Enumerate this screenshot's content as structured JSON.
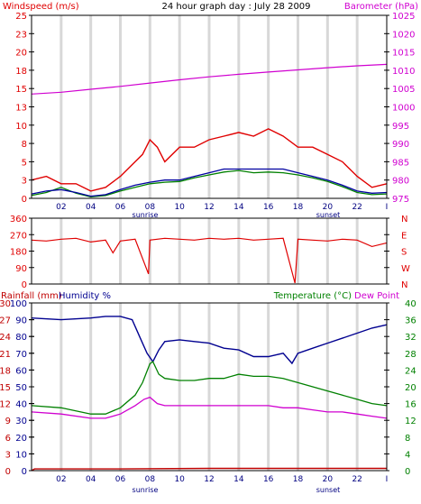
{
  "colors": {
    "wind": "#e00000",
    "wind_avg": "#0000a0",
    "wind_green": "#008000",
    "barometer": "#d000d0",
    "direction": "#e00000",
    "rainfall": "#c00000",
    "humidity": "#000090",
    "temperature": "#008000",
    "dewpoint": "#d000d0",
    "grid": "#d8d8d8",
    "frame": "#000000",
    "tick_text": "#000080"
  },
  "x_axis": {
    "tick_labels": [
      "02",
      "04",
      "06",
      "08",
      "10",
      "12",
      "14",
      "16",
      "18",
      "20",
      "22",
      "I"
    ],
    "sunrise_label": "sunrise",
    "sunset_label": "sunset",
    "sunrise_hour": 7.5,
    "sunset_hour": 19.8
  },
  "chart_data": [
    {
      "type": "line",
      "title": "24 hour graph day : July 28 2009",
      "left_axis_label": "Windspeed (m/s)",
      "right_axis_label": "Barometer (hPa)",
      "left_ticks": [
        "0",
        "3",
        "5",
        "8",
        "10",
        "13",
        "15",
        "18",
        "20",
        "23",
        "25"
      ],
      "right_ticks": [
        "975",
        "980",
        "985",
        "990",
        "995",
        "1000",
        "1005",
        "1010",
        "1015",
        "1020",
        "1025"
      ],
      "xlim": [
        0,
        24
      ],
      "ylim_left": [
        0,
        25
      ],
      "ylim_right": [
        975,
        1025
      ],
      "grid": true,
      "series": [
        {
          "key": "wind_gust",
          "axis": "left",
          "x": [
            0,
            1,
            2,
            3,
            4,
            5,
            6,
            6.5,
            7,
            7.5,
            8,
            8.5,
            9,
            10,
            11,
            12,
            13,
            14,
            15,
            16,
            17,
            18,
            19,
            20,
            21,
            22,
            23,
            24
          ],
          "values": [
            2.5,
            3,
            2,
            2,
            1,
            1.5,
            3,
            4,
            5,
            6,
            8,
            7,
            5,
            7,
            7,
            8,
            8.5,
            9,
            8.5,
            9.5,
            8.5,
            7,
            7,
            6,
            5,
            3,
            1.5,
            2
          ]
        },
        {
          "key": "wind_avg",
          "axis": "left",
          "x": [
            0,
            1,
            2,
            3,
            4,
            5,
            6,
            7,
            8,
            9,
            10,
            11,
            12,
            13,
            14,
            15,
            16,
            17,
            18,
            19,
            20,
            21,
            22,
            23,
            24
          ],
          "values": [
            0.6,
            1,
            1.2,
            0.8,
            0.3,
            0.5,
            1.2,
            1.8,
            2.2,
            2.5,
            2.5,
            3,
            3.5,
            4,
            4,
            4,
            4,
            4,
            3.5,
            3,
            2.5,
            1.8,
            1,
            0.7,
            0.8
          ]
        },
        {
          "key": "wind_green",
          "axis": "left",
          "x": [
            0,
            1,
            2,
            3,
            4,
            5,
            6,
            7,
            8,
            9,
            10,
            11,
            12,
            13,
            14,
            15,
            16,
            17,
            18,
            19,
            20,
            21,
            22,
            23,
            24
          ],
          "values": [
            0.4,
            0.8,
            1.5,
            0.7,
            0.2,
            0.4,
            1,
            1.5,
            2,
            2.2,
            2.3,
            2.8,
            3.2,
            3.6,
            3.8,
            3.5,
            3.6,
            3.5,
            3.2,
            2.8,
            2.3,
            1.6,
            0.8,
            0.5,
            0.6
          ]
        },
        {
          "key": "barometer",
          "axis": "right",
          "x": [
            0,
            2,
            4,
            6,
            8,
            10,
            12,
            14,
            16,
            18,
            20,
            22,
            24
          ],
          "values": [
            1003.5,
            1004,
            1004.8,
            1005.6,
            1006.5,
            1007.4,
            1008.2,
            1008.9,
            1009.5,
            1010.1,
            1010.7,
            1011.2,
            1011.6
          ]
        }
      ]
    },
    {
      "type": "scatter",
      "left_ticks": [
        "0",
        "90",
        "180",
        "270",
        "360"
      ],
      "right_ticks": [
        "N",
        "W",
        "S",
        "E",
        "N"
      ],
      "xlim": [
        0,
        24
      ],
      "ylim": [
        0,
        360
      ],
      "grid": true,
      "series": [
        {
          "key": "direction",
          "x": [
            0,
            1,
            2,
            3,
            4,
            5,
            5.5,
            6,
            7,
            7.9,
            8,
            9,
            10,
            11,
            12,
            13,
            14,
            15,
            16,
            17,
            17.8,
            18,
            19,
            20,
            21,
            22,
            23,
            24
          ],
          "values": [
            240,
            235,
            245,
            250,
            230,
            240,
            170,
            235,
            245,
            55,
            240,
            250,
            245,
            240,
            250,
            245,
            250,
            240,
            245,
            250,
            5,
            245,
            240,
            235,
            245,
            240,
            205,
            225
          ]
        }
      ]
    },
    {
      "type": "line",
      "left_axis_labels": [
        "Rainfall (mm)",
        "Humidity %"
      ],
      "right_axis_labels": [
        "Temperature (°C)",
        "Dew Point"
      ],
      "humidity_ticks": [
        "0",
        "10",
        "20",
        "30",
        "40",
        "50",
        "60",
        "70",
        "80",
        "90",
        "100"
      ],
      "rainfall_ticks": [
        "0",
        "3",
        "6",
        "9",
        "12",
        "15",
        "18",
        "21",
        "24",
        "27",
        "30"
      ],
      "temperature_ticks": [
        "0",
        "4",
        "8",
        "12",
        "16",
        "20",
        "24",
        "28",
        "32",
        "36",
        "40"
      ],
      "xlim": [
        0,
        24
      ],
      "ylim_humidity": [
        0,
        100
      ],
      "ylim_rainfall": [
        0,
        30
      ],
      "ylim_temperature": [
        0,
        40
      ],
      "grid": true,
      "series": [
        {
          "key": "humidity",
          "axis": "humidity",
          "x": [
            0,
            2,
            4,
            5,
            6,
            6.8,
            7.3,
            7.8,
            8.2,
            8.6,
            9,
            10,
            11,
            12,
            13,
            14,
            15,
            16,
            17,
            17.6,
            18,
            19,
            20,
            21,
            22,
            23,
            24
          ],
          "values": [
            91,
            90,
            91,
            92,
            92,
            90,
            80,
            70,
            65,
            72,
            77,
            78,
            77,
            76,
            73,
            72,
            68,
            68,
            70,
            64,
            70,
            73,
            76,
            79,
            82,
            85,
            87
          ]
        },
        {
          "key": "rainfall",
          "axis": "rainfall",
          "x": [
            0,
            0.2,
            0.4,
            6,
            12,
            13,
            24
          ],
          "values": [
            0,
            0.3,
            0.3,
            0.3,
            0.4,
            0.4,
            0.4
          ]
        },
        {
          "key": "temperature",
          "axis": "temperature",
          "x": [
            0,
            2,
            4,
            5,
            6,
            7,
            7.5,
            8,
            8.2,
            8.6,
            9,
            10,
            11,
            12,
            13,
            14,
            15,
            16,
            17,
            18,
            19,
            20,
            21,
            22,
            23,
            24
          ],
          "values": [
            15.5,
            15,
            13.5,
            13.5,
            15,
            18,
            21,
            25.5,
            26,
            23,
            22,
            21.5,
            21.5,
            22,
            22,
            23,
            22.5,
            22.5,
            22,
            21,
            20,
            19,
            18,
            17,
            16,
            15.5
          ]
        },
        {
          "key": "dewpoint",
          "axis": "temperature",
          "x": [
            0,
            2,
            4,
            5,
            6,
            7,
            7.6,
            8,
            8.5,
            9,
            10,
            11,
            12,
            13,
            14,
            15,
            16,
            17,
            18,
            19,
            20,
            21,
            22,
            23,
            24
          ],
          "values": [
            14,
            13.5,
            12.5,
            12.5,
            13.5,
            15.5,
            17,
            17.5,
            16,
            15.5,
            15.5,
            15.5,
            15.5,
            15.5,
            15.5,
            15.5,
            15.5,
            15,
            15,
            14.5,
            14,
            14,
            13.5,
            13,
            12.5
          ]
        }
      ]
    }
  ]
}
